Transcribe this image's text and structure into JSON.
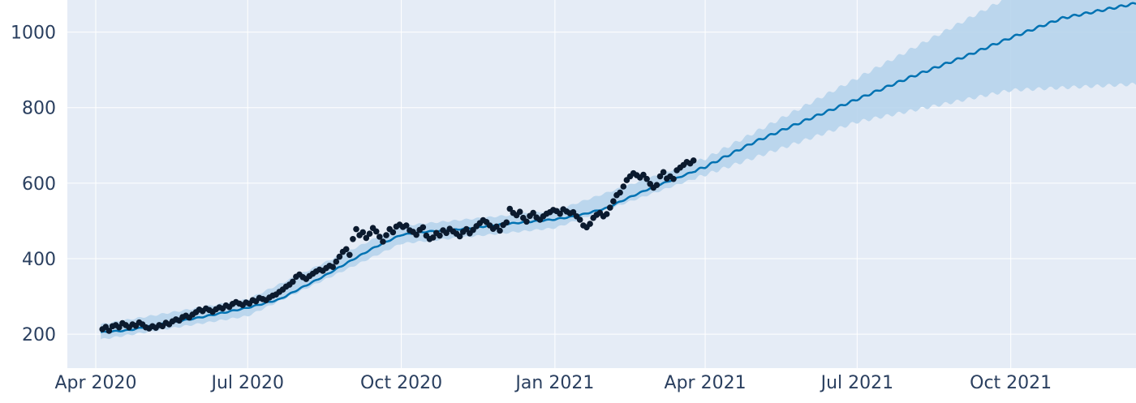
{
  "chart_data": {
    "type": "line",
    "title": "",
    "xlabel": "",
    "ylabel": "",
    "x_axis": {
      "type": "date",
      "range": [
        "2020-03-15",
        "2021-12-15"
      ],
      "ticks": [
        {
          "date": "2020-04-01",
          "label": "Apr 2020"
        },
        {
          "date": "2020-07-01",
          "label": "Jul 2020"
        },
        {
          "date": "2020-10-01",
          "label": "Oct 2020"
        },
        {
          "date": "2021-01-01",
          "label": "Jan 2021"
        },
        {
          "date": "2021-04-01",
          "label": "Apr 2021"
        },
        {
          "date": "2021-07-01",
          "label": "Jul 2021"
        },
        {
          "date": "2021-10-01",
          "label": "Oct 2021"
        }
      ]
    },
    "y_axis": {
      "range": [
        110,
        1085
      ],
      "ticks": [
        {
          "value": 200,
          "label": "200"
        },
        {
          "value": 400,
          "label": "400"
        },
        {
          "value": 600,
          "label": "600"
        },
        {
          "value": 800,
          "label": "800"
        },
        {
          "value": 1000,
          "label": "1000"
        }
      ]
    },
    "grid": true,
    "colors": {
      "background": "#e5ecf6",
      "grid": "#ffffff",
      "trend": "#0072b2",
      "band": "#b4d2eb",
      "points": "#0b1a2e",
      "tick_text": "#2a3f5f"
    },
    "series": [
      {
        "role": "observed",
        "style": "markers",
        "points": [
          [
            "2020-04-05",
            213
          ],
          [
            "2020-04-07",
            219
          ],
          [
            "2020-04-09",
            209
          ],
          [
            "2020-04-11",
            221
          ],
          [
            "2020-04-13",
            224
          ],
          [
            "2020-04-15",
            218
          ],
          [
            "2020-04-17",
            229
          ],
          [
            "2020-04-19",
            224
          ],
          [
            "2020-04-21",
            218
          ],
          [
            "2020-04-23",
            226
          ],
          [
            "2020-04-25",
            222
          ],
          [
            "2020-04-27",
            231
          ],
          [
            "2020-04-29",
            226
          ],
          [
            "2020-05-01",
            218
          ],
          [
            "2020-05-03",
            215
          ],
          [
            "2020-05-05",
            221
          ],
          [
            "2020-05-07",
            217
          ],
          [
            "2020-05-09",
            224
          ],
          [
            "2020-05-11",
            221
          ],
          [
            "2020-05-13",
            230
          ],
          [
            "2020-05-15",
            226
          ],
          [
            "2020-05-17",
            234
          ],
          [
            "2020-05-19",
            239
          ],
          [
            "2020-05-21",
            236
          ],
          [
            "2020-05-23",
            245
          ],
          [
            "2020-05-25",
            249
          ],
          [
            "2020-05-27",
            244
          ],
          [
            "2020-05-29",
            252
          ],
          [
            "2020-05-31",
            258
          ],
          [
            "2020-06-02",
            265
          ],
          [
            "2020-06-04",
            261
          ],
          [
            "2020-06-06",
            268
          ],
          [
            "2020-06-08",
            264
          ],
          [
            "2020-06-10",
            259
          ],
          [
            "2020-06-12",
            266
          ],
          [
            "2020-06-14",
            271
          ],
          [
            "2020-06-16",
            268
          ],
          [
            "2020-06-18",
            276
          ],
          [
            "2020-06-20",
            272
          ],
          [
            "2020-06-22",
            280
          ],
          [
            "2020-06-24",
            285
          ],
          [
            "2020-06-26",
            281
          ],
          [
            "2020-06-28",
            277
          ],
          [
            "2020-06-30",
            284
          ],
          [
            "2020-07-02",
            281
          ],
          [
            "2020-07-04",
            290
          ],
          [
            "2020-07-06",
            287
          ],
          [
            "2020-07-08",
            296
          ],
          [
            "2020-07-10",
            293
          ],
          [
            "2020-07-12",
            290
          ],
          [
            "2020-07-14",
            297
          ],
          [
            "2020-07-16",
            302
          ],
          [
            "2020-07-18",
            305
          ],
          [
            "2020-07-20",
            312
          ],
          [
            "2020-07-22",
            318
          ],
          [
            "2020-07-24",
            326
          ],
          [
            "2020-07-26",
            331
          ],
          [
            "2020-07-28",
            339
          ],
          [
            "2020-07-30",
            352
          ],
          [
            "2020-08-01",
            358
          ],
          [
            "2020-08-03",
            351
          ],
          [
            "2020-08-05",
            346
          ],
          [
            "2020-08-07",
            354
          ],
          [
            "2020-08-09",
            360
          ],
          [
            "2020-08-11",
            366
          ],
          [
            "2020-08-13",
            371
          ],
          [
            "2020-08-15",
            368
          ],
          [
            "2020-08-17",
            375
          ],
          [
            "2020-08-19",
            381
          ],
          [
            "2020-08-21",
            378
          ],
          [
            "2020-08-23",
            392
          ],
          [
            "2020-08-25",
            405
          ],
          [
            "2020-08-27",
            418
          ],
          [
            "2020-08-29",
            425
          ],
          [
            "2020-08-31",
            410
          ],
          [
            "2020-09-02",
            452
          ],
          [
            "2020-09-04",
            478
          ],
          [
            "2020-09-06",
            462
          ],
          [
            "2020-09-08",
            470
          ],
          [
            "2020-09-10",
            455
          ],
          [
            "2020-09-12",
            466
          ],
          [
            "2020-09-14",
            481
          ],
          [
            "2020-09-16",
            472
          ],
          [
            "2020-09-18",
            458
          ],
          [
            "2020-09-20",
            445
          ],
          [
            "2020-09-22",
            462
          ],
          [
            "2020-09-24",
            478
          ],
          [
            "2020-09-26",
            470
          ],
          [
            "2020-09-28",
            485
          ],
          [
            "2020-09-30",
            490
          ],
          [
            "2020-10-02",
            484
          ],
          [
            "2020-10-04",
            488
          ],
          [
            "2020-10-06",
            475
          ],
          [
            "2020-10-08",
            471
          ],
          [
            "2020-10-10",
            463
          ],
          [
            "2020-10-12",
            476
          ],
          [
            "2020-10-14",
            483
          ],
          [
            "2020-10-16",
            461
          ],
          [
            "2020-10-18",
            452
          ],
          [
            "2020-10-20",
            456
          ],
          [
            "2020-10-22",
            468
          ],
          [
            "2020-10-24",
            461
          ],
          [
            "2020-10-26",
            475
          ],
          [
            "2020-10-28",
            468
          ],
          [
            "2020-10-30",
            479
          ],
          [
            "2020-11-01",
            472
          ],
          [
            "2020-11-03",
            466
          ],
          [
            "2020-11-05",
            459
          ],
          [
            "2020-11-07",
            471
          ],
          [
            "2020-11-09",
            478
          ],
          [
            "2020-11-11",
            467
          ],
          [
            "2020-11-13",
            476
          ],
          [
            "2020-11-15",
            486
          ],
          [
            "2020-11-17",
            494
          ],
          [
            "2020-11-19",
            502
          ],
          [
            "2020-11-21",
            497
          ],
          [
            "2020-11-23",
            488
          ],
          [
            "2020-11-25",
            479
          ],
          [
            "2020-11-27",
            485
          ],
          [
            "2020-11-29",
            474
          ],
          [
            "2020-12-01",
            489
          ],
          [
            "2020-12-03",
            496
          ],
          [
            "2020-12-05",
            532
          ],
          [
            "2020-12-07",
            521
          ],
          [
            "2020-12-09",
            515
          ],
          [
            "2020-12-11",
            524
          ],
          [
            "2020-12-13",
            508
          ],
          [
            "2020-12-15",
            498
          ],
          [
            "2020-12-17",
            513
          ],
          [
            "2020-12-19",
            521
          ],
          [
            "2020-12-21",
            509
          ],
          [
            "2020-12-23",
            503
          ],
          [
            "2020-12-25",
            512
          ],
          [
            "2020-12-27",
            519
          ],
          [
            "2020-12-29",
            523
          ],
          [
            "2020-12-31",
            529
          ],
          [
            "2021-01-02",
            526
          ],
          [
            "2021-01-04",
            519
          ],
          [
            "2021-01-06",
            531
          ],
          [
            "2021-01-08",
            525
          ],
          [
            "2021-01-10",
            520
          ],
          [
            "2021-01-12",
            523
          ],
          [
            "2021-01-14",
            512
          ],
          [
            "2021-01-16",
            503
          ],
          [
            "2021-01-18",
            488
          ],
          [
            "2021-01-20",
            483
          ],
          [
            "2021-01-22",
            492
          ],
          [
            "2021-01-24",
            508
          ],
          [
            "2021-01-26",
            516
          ],
          [
            "2021-01-28",
            521
          ],
          [
            "2021-01-30",
            512
          ],
          [
            "2021-02-01",
            518
          ],
          [
            "2021-02-03",
            535
          ],
          [
            "2021-02-05",
            552
          ],
          [
            "2021-02-07",
            568
          ],
          [
            "2021-02-09",
            575
          ],
          [
            "2021-02-11",
            591
          ],
          [
            "2021-02-13",
            608
          ],
          [
            "2021-02-15",
            618
          ],
          [
            "2021-02-17",
            626
          ],
          [
            "2021-02-19",
            621
          ],
          [
            "2021-02-21",
            615
          ],
          [
            "2021-02-23",
            622
          ],
          [
            "2021-02-25",
            611
          ],
          [
            "2021-02-27",
            598
          ],
          [
            "2021-03-01",
            588
          ],
          [
            "2021-03-03",
            595
          ],
          [
            "2021-03-05",
            618
          ],
          [
            "2021-03-07",
            629
          ],
          [
            "2021-03-09",
            612
          ],
          [
            "2021-03-11",
            618
          ],
          [
            "2021-03-13",
            611
          ],
          [
            "2021-03-15",
            634
          ],
          [
            "2021-03-17",
            641
          ],
          [
            "2021-03-19",
            648
          ],
          [
            "2021-03-21",
            656
          ],
          [
            "2021-03-23",
            652
          ],
          [
            "2021-03-25",
            660
          ]
        ]
      },
      {
        "role": "trend",
        "style": "line",
        "points": [
          [
            "2020-04-04",
            205
          ],
          [
            "2020-04-20",
            210
          ],
          [
            "2020-05-01",
            219
          ],
          [
            "2020-06-01",
            243
          ],
          [
            "2020-07-01",
            270
          ],
          [
            "2020-07-20",
            292
          ],
          [
            "2020-08-01",
            320
          ],
          [
            "2020-08-15",
            352
          ],
          [
            "2020-09-01",
            395
          ],
          [
            "2020-09-15",
            430
          ],
          [
            "2020-10-01",
            463
          ],
          [
            "2020-10-15",
            471
          ],
          [
            "2020-11-01",
            476
          ],
          [
            "2020-11-15",
            483
          ],
          [
            "2020-12-01",
            491
          ],
          [
            "2020-12-15",
            497
          ],
          [
            "2021-01-01",
            504
          ],
          [
            "2021-01-15",
            514
          ],
          [
            "2021-02-01",
            534
          ],
          [
            "2021-02-15",
            563
          ],
          [
            "2021-03-01",
            590
          ],
          [
            "2021-03-15",
            613
          ],
          [
            "2021-04-01",
            643
          ],
          [
            "2021-05-01",
            710
          ],
          [
            "2021-06-01",
            768
          ],
          [
            "2021-07-01",
            822
          ],
          [
            "2021-08-01",
            879
          ],
          [
            "2021-09-01",
            931
          ],
          [
            "2021-10-01",
            985
          ],
          [
            "2021-11-01",
            1037
          ],
          [
            "2021-12-15",
            1076
          ]
        ]
      },
      {
        "role": "uncertainty_band",
        "style": "band",
        "lower": [
          [
            "2020-04-04",
            186
          ],
          [
            "2020-07-01",
            248
          ],
          [
            "2020-10-01",
            440
          ],
          [
            "2021-01-01",
            481
          ],
          [
            "2021-04-01",
            622
          ],
          [
            "2021-07-01",
            762
          ],
          [
            "2021-10-01",
            846
          ],
          [
            "2021-12-15",
            862
          ]
        ],
        "upper": [
          [
            "2020-04-04",
            226
          ],
          [
            "2020-07-01",
            292
          ],
          [
            "2020-10-01",
            487
          ],
          [
            "2021-01-01",
            527
          ],
          [
            "2021-04-01",
            665
          ],
          [
            "2021-07-01",
            878
          ],
          [
            "2021-10-01",
            1096
          ],
          [
            "2021-12-15",
            1285
          ]
        ]
      }
    ]
  }
}
